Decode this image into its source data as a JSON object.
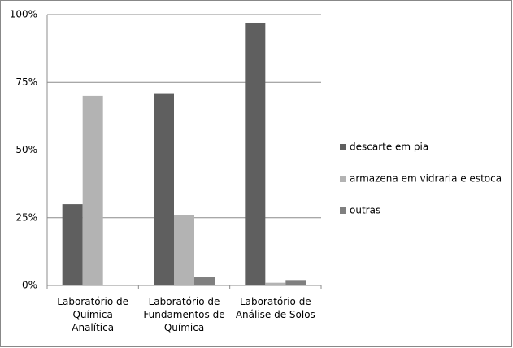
{
  "chart_data": {
    "type": "bar",
    "categories": [
      "Laboratório de Química Analítica",
      "Laboratório de Fundamentos de Química",
      "Laboratório de Análise de Solos"
    ],
    "series": [
      {
        "name": "descarte em pia",
        "color": "#5f5f5f",
        "values": [
          30,
          71,
          97
        ]
      },
      {
        "name": "armazena em vidraria e estoca",
        "color": "#b3b3b3",
        "values": [
          70,
          26,
          1
        ]
      },
      {
        "name": "outras",
        "color": "#7f7f7f",
        "values": [
          0,
          3,
          2
        ]
      }
    ],
    "ylim": [
      0,
      100
    ],
    "yticks": [
      {
        "value": 0,
        "label": "0%"
      },
      {
        "value": 25,
        "label": "25%"
      },
      {
        "value": 50,
        "label": "50%"
      },
      {
        "value": 75,
        "label": "75%"
      },
      {
        "value": 100,
        "label": "100%"
      }
    ],
    "grid": true,
    "legend": "right"
  }
}
